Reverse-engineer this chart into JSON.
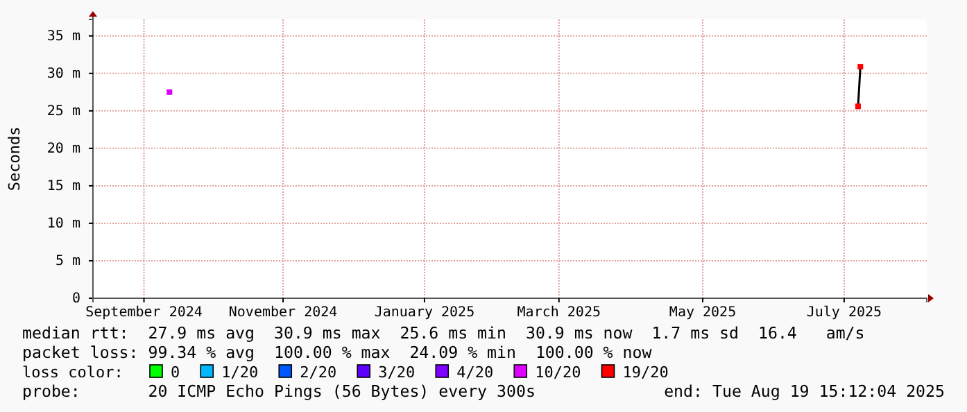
{
  "chart_data": {
    "type": "scatter",
    "ylabel": "Seconds",
    "legend_title": "loss color:",
    "legend": "bottom",
    "grid": true,
    "marker": "square",
    "xlim": [
      "2024-08-25",
      "2025-08-19T15:12"
    ],
    "ylim": [
      0,
      37.2
    ],
    "xticks": [
      {
        "value": "2024-09-16",
        "label": "September 2024"
      },
      {
        "value": "2024-11-15",
        "label": "November 2024"
      },
      {
        "value": "2025-01-15",
        "label": "January 2025"
      },
      {
        "value": "2025-03-14",
        "label": "March 2025"
      },
      {
        "value": "2025-05-15",
        "label": "May 2025"
      },
      {
        "value": "2025-07-15",
        "label": "July 2025"
      }
    ],
    "yticks": [
      {
        "value": 0,
        "label": "0"
      },
      {
        "value": 5,
        "label": "5 m"
      },
      {
        "value": 10,
        "label": "10 m"
      },
      {
        "value": 15,
        "label": "15 m"
      },
      {
        "value": 20,
        "label": "20 m"
      },
      {
        "value": 25,
        "label": "25 m"
      },
      {
        "value": 30,
        "label": "30 m"
      },
      {
        "value": 35,
        "label": "35 m"
      }
    ],
    "series": [
      {
        "type": "line",
        "color": "#000000",
        "marker": "none",
        "x": [
          "2025-07-21",
          "2025-07-22"
        ],
        "values": [
          25.6,
          30.9
        ]
      },
      {
        "name": "0",
        "color": "#00ff00"
      },
      {
        "name": "1/20",
        "color": "#00b8ff"
      },
      {
        "name": "2/20",
        "color": "#0059ff"
      },
      {
        "name": "3/20",
        "color": "#5e00ff"
      },
      {
        "name": "4/20",
        "color": "#7e00ff"
      },
      {
        "name": "10/20",
        "color": "#dd00ff",
        "x": [
          "2024-09-27"
        ],
        "values": [
          27.5
        ]
      },
      {
        "name": "19/20",
        "color": "#ff0000",
        "x": [
          "2025-07-21",
          "2025-07-22"
        ],
        "values": [
          25.6,
          30.9
        ]
      }
    ],
    "annotations": [
      "median rtt:  27.9 ms avg  30.9 ms max  25.6 ms min  30.9 ms now  1.7 ms sd  16.4   am/s",
      "packet loss: 99.34 % avg  100.00 % max  24.09 % min  100.00 % now",
      "probe:       20 ICMP Echo Pings (56 Bytes) every 300s",
      "end: Tue Aug 19 15:12:04 2025"
    ]
  }
}
